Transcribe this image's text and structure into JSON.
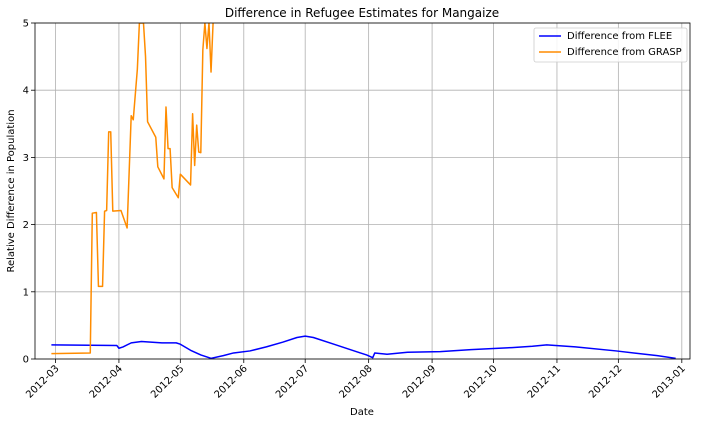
{
  "chart_data": {
    "type": "line",
    "title": "Difference in Refugee Estimates for Mangaize",
    "xlabel": "Date",
    "ylabel": "Relative Difference in Population",
    "xlim": [
      "2012-02-20",
      "2013-01-05"
    ],
    "ylim": [
      0,
      5
    ],
    "x_ticks": [
      "2012-03-01",
      "2012-04-01",
      "2012-05-01",
      "2012-06-01",
      "2012-07-01",
      "2012-08-01",
      "2012-09-01",
      "2012-10-01",
      "2012-11-01",
      "2012-12-01",
      "2013-01-01"
    ],
    "x_tick_labels": [
      "2012-03",
      "2012-04",
      "2012-05",
      "2012-06",
      "2012-07",
      "2012-08",
      "2012-09",
      "2012-10",
      "2012-11",
      "2012-12",
      "2013-01"
    ],
    "y_ticks": [
      0,
      1,
      2,
      3,
      4,
      5
    ],
    "y_tick_labels": [
      "0",
      "1",
      "2",
      "3",
      "4",
      "5"
    ],
    "grid": true,
    "legend_position": "top-right",
    "series": [
      {
        "name": "Difference from FLEE",
        "color": "#0000ff",
        "points": [
          [
            "2012-02-28",
            0.21
          ],
          [
            "2012-03-31",
            0.2
          ],
          [
            "2012-04-01",
            0.16
          ],
          [
            "2012-04-03",
            0.18
          ],
          [
            "2012-04-07",
            0.24
          ],
          [
            "2012-04-12",
            0.26
          ],
          [
            "2012-04-22",
            0.24
          ],
          [
            "2012-04-29",
            0.24
          ],
          [
            "2012-05-01",
            0.22
          ],
          [
            "2012-05-06",
            0.13
          ],
          [
            "2012-05-11",
            0.06
          ],
          [
            "2012-05-16",
            0.01
          ],
          [
            "2012-05-22",
            0.05
          ],
          [
            "2012-05-27",
            0.09
          ],
          [
            "2012-06-04",
            0.12
          ],
          [
            "2012-06-12",
            0.18
          ],
          [
            "2012-06-20",
            0.25
          ],
          [
            "2012-06-27",
            0.32
          ],
          [
            "2012-07-01",
            0.34
          ],
          [
            "2012-07-05",
            0.32
          ],
          [
            "2012-07-15",
            0.22
          ],
          [
            "2012-07-27",
            0.1
          ],
          [
            "2012-07-31",
            0.06
          ],
          [
            "2012-08-03",
            0.02
          ],
          [
            "2012-08-04",
            0.09
          ],
          [
            "2012-08-10",
            0.07
          ],
          [
            "2012-08-20",
            0.1
          ],
          [
            "2012-09-05",
            0.11
          ],
          [
            "2012-09-20",
            0.14
          ],
          [
            "2012-10-10",
            0.17
          ],
          [
            "2012-10-20",
            0.19
          ],
          [
            "2012-10-27",
            0.21
          ],
          [
            "2012-11-10",
            0.18
          ],
          [
            "2012-11-30",
            0.12
          ],
          [
            "2012-12-20",
            0.05
          ],
          [
            "2012-12-29",
            0.01
          ]
        ]
      },
      {
        "name": "Difference from GRASP",
        "color": "#ff8c00",
        "points": [
          [
            "2012-02-28",
            0.08
          ],
          [
            "2012-03-18",
            0.09
          ],
          [
            "2012-03-19",
            2.17
          ],
          [
            "2012-03-21",
            2.18
          ],
          [
            "2012-03-22",
            1.08
          ],
          [
            "2012-03-24",
            1.08
          ],
          [
            "2012-03-25",
            2.2
          ],
          [
            "2012-03-26",
            2.21
          ],
          [
            "2012-03-27",
            3.38
          ],
          [
            "2012-03-28",
            3.38
          ],
          [
            "2012-03-29",
            2.2
          ],
          [
            "2012-04-02",
            2.21
          ],
          [
            "2012-04-05",
            1.95
          ],
          [
            "2012-04-07",
            3.62
          ],
          [
            "2012-04-08",
            3.56
          ],
          [
            "2012-04-10",
            4.31
          ],
          [
            "2012-04-11",
            5.0
          ],
          [
            "2012-04-13",
            5.0
          ],
          [
            "2012-04-14",
            4.5
          ],
          [
            "2012-04-15",
            3.53
          ],
          [
            "2012-04-19",
            3.3
          ],
          [
            "2012-04-20",
            2.86
          ],
          [
            "2012-04-23",
            2.68
          ],
          [
            "2012-04-24",
            3.75
          ],
          [
            "2012-04-25",
            3.13
          ],
          [
            "2012-04-26",
            3.13
          ],
          [
            "2012-04-27",
            2.55
          ],
          [
            "2012-04-30",
            2.4
          ],
          [
            "2012-05-01",
            2.75
          ],
          [
            "2012-05-06",
            2.59
          ],
          [
            "2012-05-07",
            3.65
          ],
          [
            "2012-05-08",
            2.88
          ],
          [
            "2012-05-09",
            3.48
          ],
          [
            "2012-05-10",
            3.08
          ],
          [
            "2012-05-11",
            3.07
          ],
          [
            "2012-05-12",
            4.6
          ],
          [
            "2012-05-13",
            5.0
          ],
          [
            "2012-05-14",
            4.62
          ],
          [
            "2012-05-15",
            5.0
          ],
          [
            "2012-05-16",
            4.27
          ],
          [
            "2012-05-17",
            5.0
          ]
        ]
      }
    ]
  }
}
